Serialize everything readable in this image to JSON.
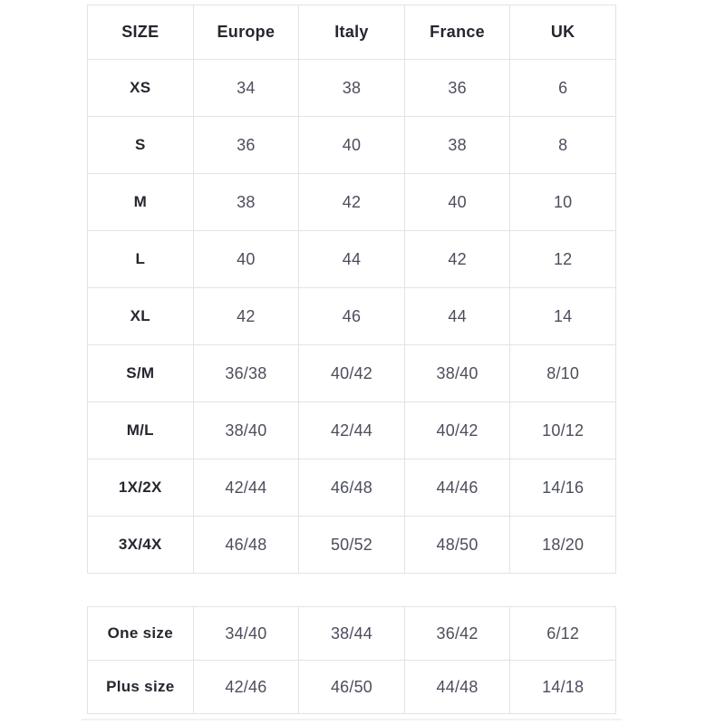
{
  "colors": {
    "background": "#ffffff",
    "border": "#e3e3e3",
    "header_text": "#25262f",
    "value_text": "#4c4e5c"
  },
  "chart_data": [
    {
      "type": "table",
      "columns": [
        "SIZE",
        "Europe",
        "Italy",
        "France",
        "UK"
      ],
      "rows": [
        [
          "XS",
          "34",
          "38",
          "36",
          "6"
        ],
        [
          "S",
          "36",
          "40",
          "38",
          "8"
        ],
        [
          "M",
          "38",
          "42",
          "40",
          "10"
        ],
        [
          "L",
          "40",
          "44",
          "42",
          "12"
        ],
        [
          "XL",
          "42",
          "46",
          "44",
          "14"
        ],
        [
          "S/M",
          "36/38",
          "40/42",
          "38/40",
          "8/10"
        ],
        [
          "M/L",
          "38/40",
          "42/44",
          "40/42",
          "10/12"
        ],
        [
          "1X/2X",
          "42/44",
          "46/48",
          "44/46",
          "14/16"
        ],
        [
          "3X/4X",
          "46/48",
          "50/52",
          "48/50",
          "18/20"
        ]
      ],
      "legend": false,
      "grid": true
    },
    {
      "type": "table",
      "columns": [],
      "rows": [
        [
          "One size",
          "34/40",
          "38/44",
          "36/42",
          "6/12"
        ],
        [
          "Plus size",
          "42/46",
          "46/50",
          "44/48",
          "14/18"
        ]
      ],
      "legend": false,
      "grid": true
    }
  ]
}
